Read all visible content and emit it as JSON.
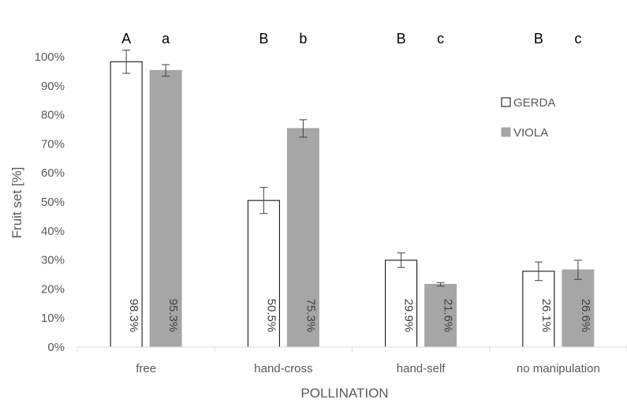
{
  "chart_data": {
    "type": "bar",
    "categories": [
      "free",
      "hand-cross",
      "hand-self",
      "no manipulation"
    ],
    "series": [
      {
        "name": "GERDA",
        "color": "#ffffff",
        "stroke": "#000000",
        "values": [
          98.3,
          50.5,
          29.9,
          26.1
        ],
        "errors": [
          4.0,
          4.5,
          2.5,
          3.2
        ],
        "labels": [
          "98.3%",
          "50.5%",
          "29.9%",
          "26.1%"
        ],
        "letters": [
          "A",
          "B",
          "B",
          "B"
        ]
      },
      {
        "name": "VIOLA",
        "color": "#a6a6a6",
        "stroke": "#a6a6a6",
        "values": [
          95.3,
          75.3,
          21.6,
          26.6
        ],
        "errors": [
          2.0,
          3.0,
          0.6,
          3.3
        ],
        "labels": [
          "95.3%",
          "75.3%",
          "21.6%",
          "26.6%"
        ],
        "letters": [
          "a",
          "b",
          "c",
          "c"
        ]
      }
    ],
    "ylabel": "Fruit set [%]",
    "xlabel": "POLLINATION",
    "ylim": [
      0,
      100
    ],
    "yticks": [
      "0%",
      "10%",
      "20%",
      "30%",
      "40%",
      "50%",
      "60%",
      "70%",
      "80%",
      "90%",
      "100%"
    ],
    "grid": false,
    "legend_position": "right"
  }
}
